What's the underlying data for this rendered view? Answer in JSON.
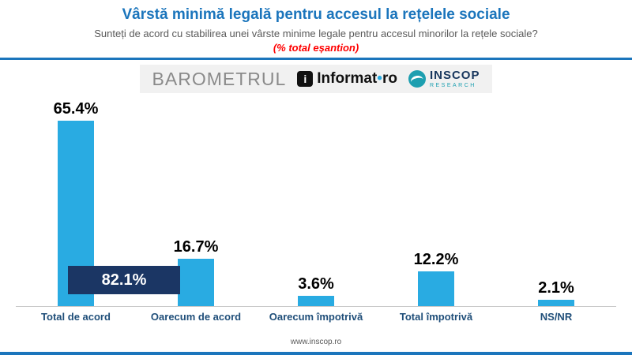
{
  "header": {
    "title": "Vârstă minimă legală pentru accesul la rețelele sociale",
    "subtitle": "Sunteți de acord cu stabilirea unei vârste minime legale pentru accesul minorilor la rețele sociale?",
    "note": "(% total eșantion)"
  },
  "branding": {
    "barometrul": "BAROMETRUL",
    "informat_icon": "i",
    "informat": "Informat",
    "informat_dot": "•",
    "informat_suffix": "ro",
    "inscop_name": "INSCOP",
    "inscop_sub": "RESEARCH"
  },
  "chart_data": {
    "type": "bar",
    "title": "Vârstă minimă legală pentru accesul la rețelele sociale",
    "categories": [
      "Total de acord",
      "Oarecum de acord",
      "Oarecum împotrivă",
      "Total împotrivă",
      "NS/NR"
    ],
    "values": [
      65.4,
      16.7,
      3.6,
      12.2,
      2.1
    ],
    "value_labels": [
      "65.4%",
      "16.7%",
      "3.6%",
      "12.2%",
      "2.1%"
    ],
    "combined_label": "82.1%",
    "combined_note": "sum of Total de acord + Oarecum de acord",
    "bar_color": "#29ABE2",
    "combined_box_color": "#1B3664",
    "xlabel": "",
    "ylabel": "% total eșantion",
    "ylim": [
      0,
      70
    ],
    "grid": false,
    "legend": "none"
  },
  "footer": {
    "url": "www.inscop.ro"
  },
  "colors": {
    "title_blue": "#1B75BC",
    "category_label_blue": "#1F4E79",
    "note_red": "#FF0000"
  }
}
